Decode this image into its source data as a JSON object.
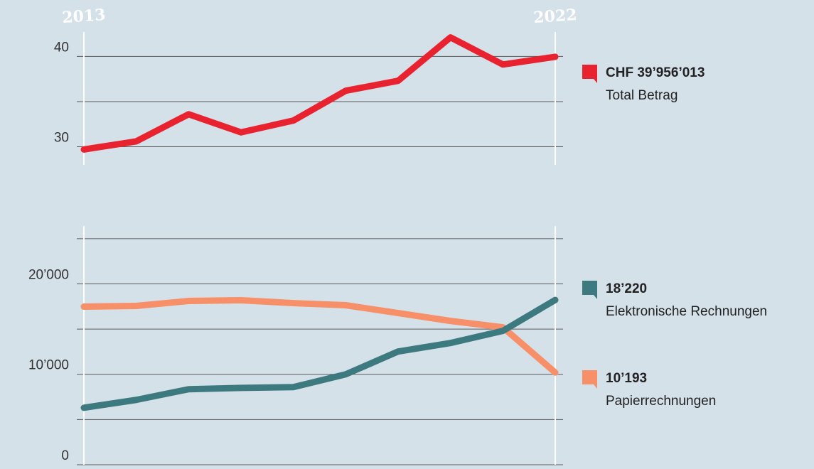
{
  "chart_data": [
    {
      "type": "line",
      "x": [
        2013,
        2014,
        2015,
        2016,
        2017,
        2018,
        2019,
        2020,
        2021,
        2022
      ],
      "xlim": [
        2013,
        2022
      ],
      "xticks": [
        2013,
        2022
      ],
      "ylim": [
        28,
        42.7
      ],
      "yticks": [
        30,
        40
      ],
      "ygrid": [
        30,
        35,
        40
      ],
      "series": [
        {
          "name": "Total Betrag",
          "end_label": "CHF 39’956’013",
          "color": "#e8222e",
          "values": [
            29.7,
            30.6,
            33.6,
            31.6,
            32.9,
            36.2,
            37.3,
            42.1,
            39.1,
            39.956013
          ]
        }
      ]
    },
    {
      "type": "line",
      "x": [
        2013,
        2014,
        2015,
        2016,
        2017,
        2018,
        2019,
        2020,
        2021,
        2022
      ],
      "xlim": [
        2013,
        2022
      ],
      "ylim": [
        0,
        26400
      ],
      "yticks": [
        0,
        {
          "value": 10000,
          "label": "10’000"
        },
        {
          "value": 20000,
          "label": "20’000"
        }
      ],
      "ygrid": [
        0,
        5000,
        10000,
        15000,
        20000,
        25000
      ],
      "series": [
        {
          "name": "Papierrechnungen",
          "end_label": "10’193",
          "color": "#f78f68",
          "values": [
            17480,
            17560,
            18110,
            18190,
            17870,
            17640,
            16770,
            15900,
            15200,
            10193
          ]
        },
        {
          "name": "Elektronische Rechnungen",
          "end_label": "18’220",
          "color": "#3d7a80",
          "values": [
            6300,
            7170,
            8350,
            8500,
            8580,
            10000,
            12520,
            13460,
            14800,
            18220
          ]
        }
      ]
    }
  ]
}
